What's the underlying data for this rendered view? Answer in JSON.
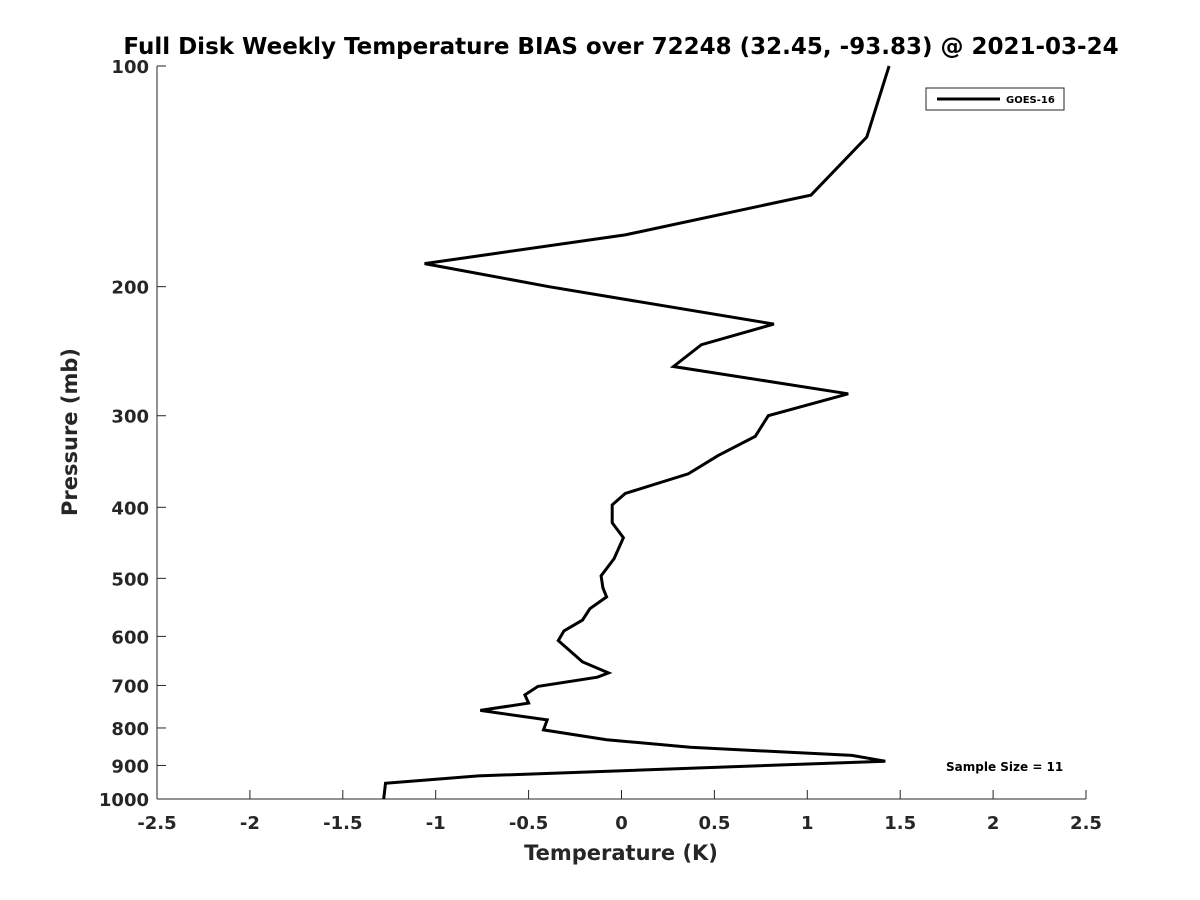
{
  "chart_data": {
    "type": "line",
    "title": "Full Disk Weekly Temperature BIAS over 72248 (32.45, -93.83) @ 2021-03-24",
    "xlabel": "Temperature (K)",
    "ylabel": "Pressure (mb)",
    "xlim": [
      -2.5,
      2.5
    ],
    "ylim": [
      100,
      1000
    ],
    "y_scale": "log",
    "y_reversed": true,
    "x_ticks": [
      -2.5,
      -2,
      -1.5,
      -1,
      -0.5,
      0,
      0.5,
      1,
      1.5,
      2,
      2.5
    ],
    "x_tick_labels": [
      "-2.5",
      "-2",
      "-1.5",
      "-1",
      "-0.5",
      "0",
      "0.5",
      "1",
      "1.5",
      "2",
      "2.5"
    ],
    "y_ticks": [
      100,
      200,
      300,
      400,
      500,
      600,
      700,
      800,
      900,
      1000
    ],
    "y_tick_labels": [
      "100",
      "200",
      "300",
      "400",
      "500",
      "600",
      "700",
      "800",
      "900",
      "1000"
    ],
    "grid": false,
    "legend": {
      "placement": "top-right",
      "entries": [
        "GOES-16"
      ]
    },
    "annotation": "Sample Size = 11",
    "series": [
      {
        "name": "GOES-16",
        "color": "#000000",
        "points": [
          [
            1.44,
            100
          ],
          [
            1.32,
            125
          ],
          [
            1.02,
            150
          ],
          [
            0.02,
            170
          ],
          [
            -1.06,
            186
          ],
          [
            -0.39,
            200
          ],
          [
            0.82,
            225
          ],
          [
            0.43,
            240
          ],
          [
            0.28,
            257
          ],
          [
            1.22,
            280
          ],
          [
            0.79,
            300
          ],
          [
            0.72,
            320
          ],
          [
            0.52,
            340
          ],
          [
            0.36,
            360
          ],
          [
            0.02,
            383
          ],
          [
            -0.05,
            397
          ],
          [
            -0.05,
            420
          ],
          [
            0.01,
            440
          ],
          [
            -0.04,
            470
          ],
          [
            -0.11,
            496
          ],
          [
            -0.1,
            515
          ],
          [
            -0.08,
            530
          ],
          [
            -0.17,
            550
          ],
          [
            -0.21,
            570
          ],
          [
            -0.31,
            590
          ],
          [
            -0.34,
            608
          ],
          [
            -0.21,
            650
          ],
          [
            -0.07,
            673
          ],
          [
            -0.13,
            682
          ],
          [
            -0.45,
            702
          ],
          [
            -0.52,
            721
          ],
          [
            -0.5,
            740
          ],
          [
            -0.76,
            757
          ],
          [
            -0.4,
            780
          ],
          [
            -0.42,
            805
          ],
          [
            -0.08,
            830
          ],
          [
            0.37,
            850
          ],
          [
            1.24,
            872
          ],
          [
            1.42,
            888
          ],
          [
            -0.77,
            930
          ],
          [
            -1.27,
            952
          ],
          [
            -1.28,
            1000
          ]
        ]
      }
    ]
  }
}
